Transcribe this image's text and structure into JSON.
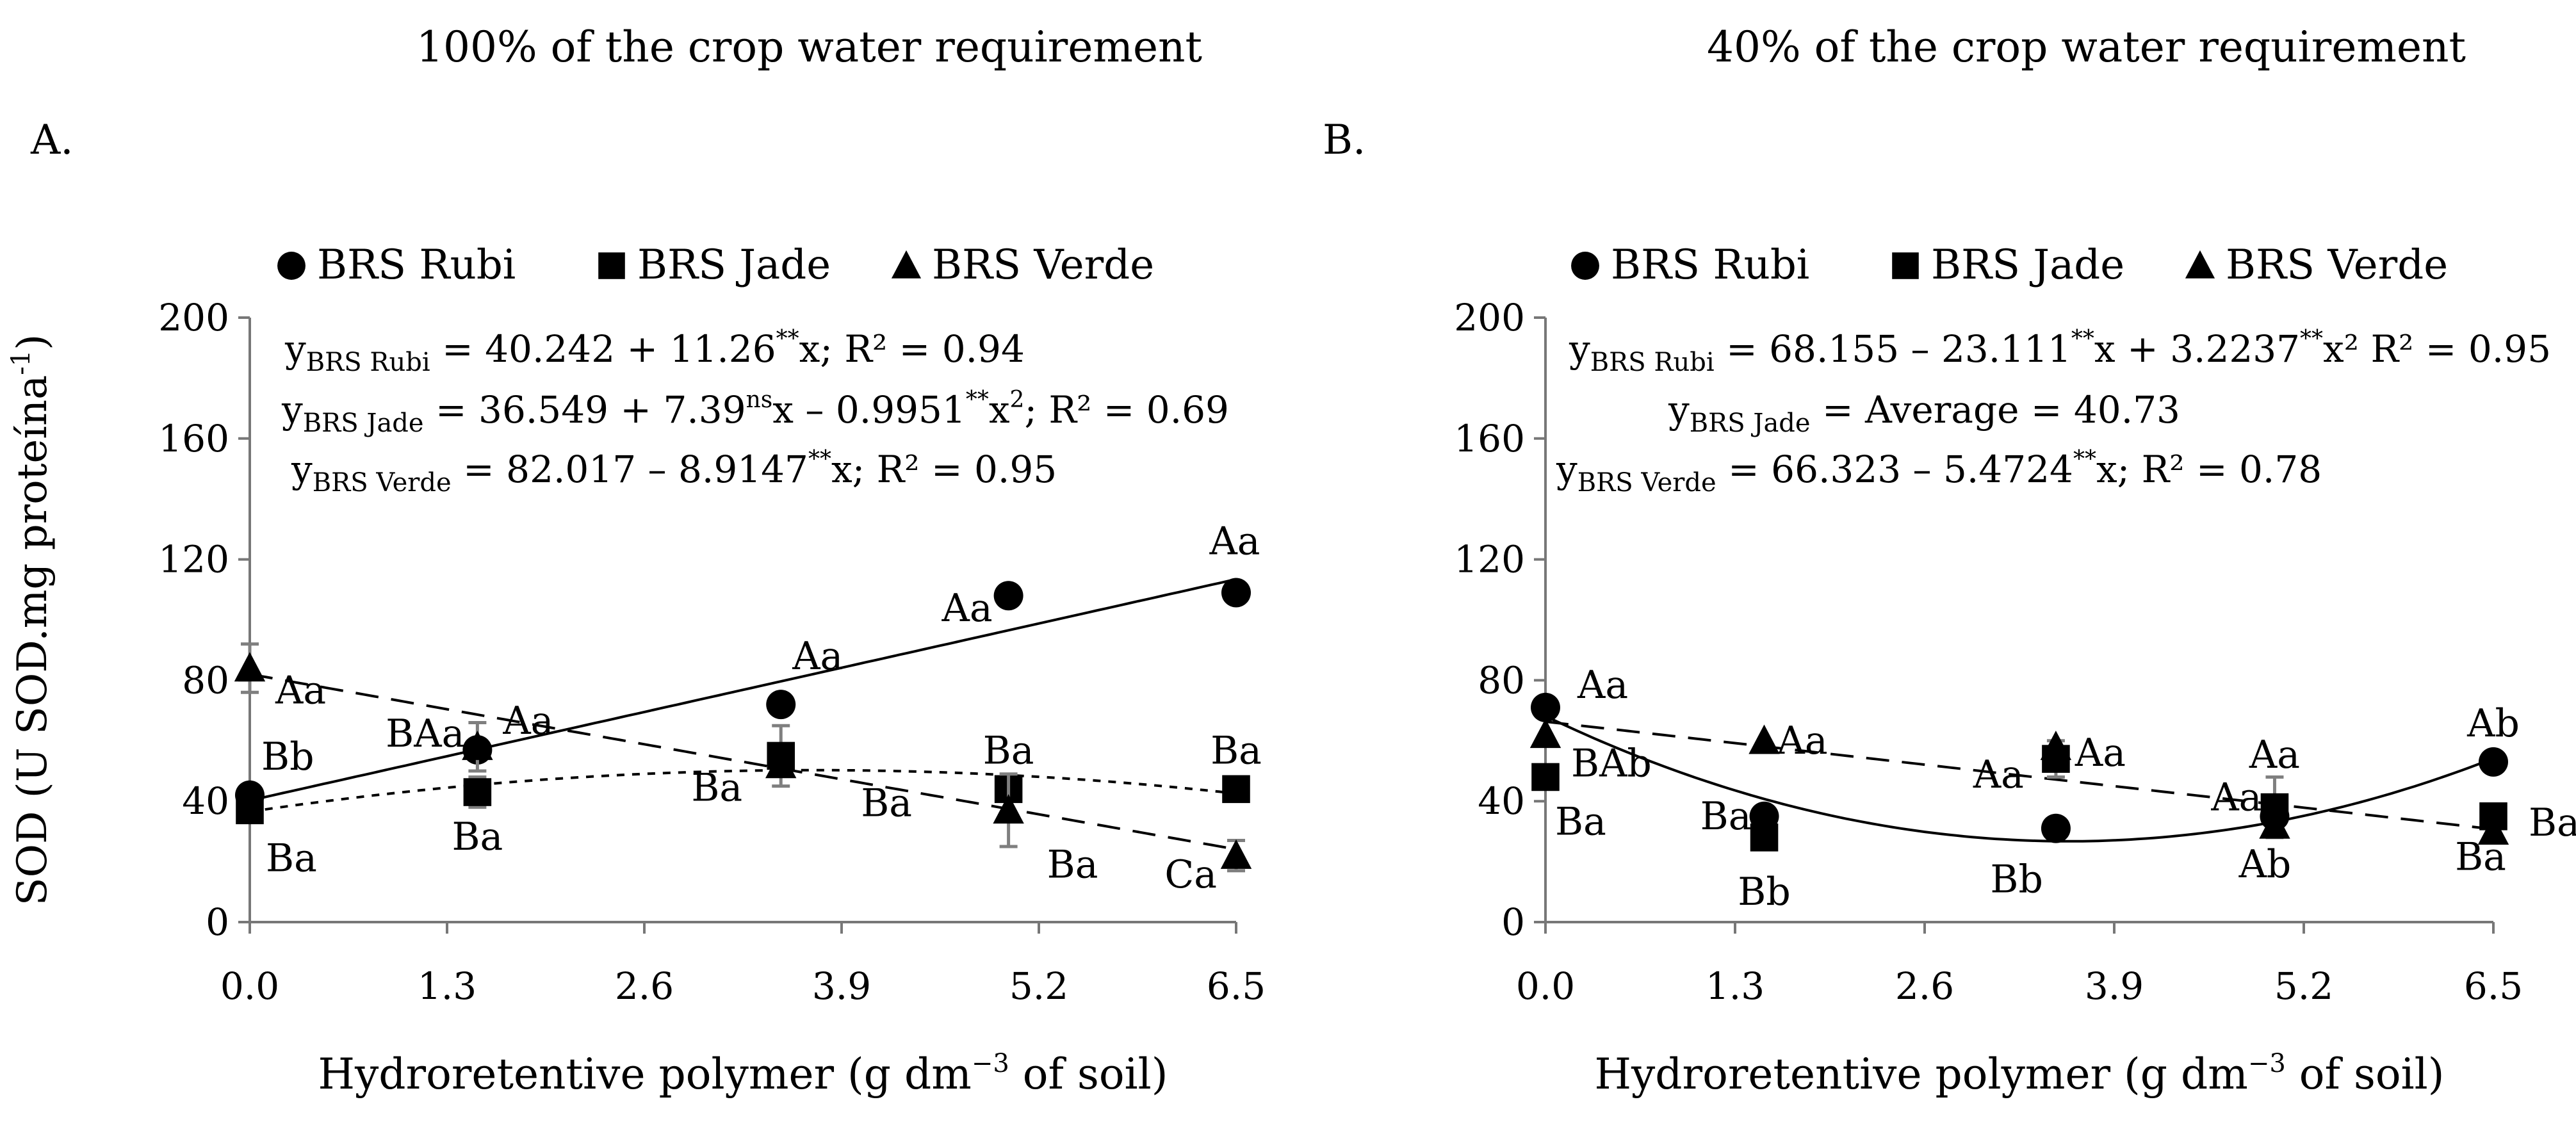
{
  "axes": {
    "x": {
      "min": 0,
      "max": 6.5,
      "ticks": [
        0,
        1.3,
        2.6,
        3.9,
        5.2,
        6.5
      ],
      "tick_labels": [
        "0.0",
        "1.3",
        "2.6",
        "3.9",
        "5.2",
        "6.5"
      ]
    },
    "y": {
      "min": 0,
      "max": 200,
      "ticks": [
        0,
        40,
        80,
        120,
        160,
        200
      ],
      "tick_labels": [
        "0",
        "40",
        "80",
        "120",
        "160",
        "200"
      ]
    }
  },
  "legend": {
    "entries": [
      {
        "name": "BRS Rubi",
        "marker": "circle"
      },
      {
        "name": "BRS Jade",
        "marker": "square"
      },
      {
        "name": "BRS Verde",
        "marker": "triangle"
      }
    ]
  },
  "chart_data": [
    {
      "type": "scatter",
      "title": "100% of the crop water requirement",
      "panel_label": "A.",
      "ylabel": "SOD (U SOD.mg proteína",
      "ylabel_sup": "-1",
      "ylabel_close": ")",
      "xlabel": "Hydroretentive polymer (g dm",
      "xlabel_sup": "−3",
      "xlabel_tail": " of soil)",
      "xlim": [
        0,
        6.5
      ],
      "ylim": [
        0,
        200
      ],
      "grid": false,
      "legend_position": "top",
      "x": [
        0,
        1.5,
        3.5,
        5.0,
        6.5
      ],
      "series": [
        {
          "name": "BRS Rubi",
          "marker": "circle",
          "values": [
            42,
            57,
            72,
            108,
            109
          ],
          "errors": [
            0,
            0,
            0,
            0,
            0
          ],
          "labels": [
            "Bb",
            "BAa",
            "Aa",
            "Aa",
            "Aa"
          ],
          "fit": "linear",
          "coef": [
            40.242,
            11.26
          ],
          "dash": "solid"
        },
        {
          "name": "BRS Jade",
          "marker": "square",
          "values": [
            37,
            43,
            55,
            44,
            44
          ],
          "errors": [
            0,
            5,
            10,
            0,
            0
          ],
          "labels": [
            "Ba",
            "Ba",
            "Ba",
            "Ba",
            "Ba"
          ],
          "fit": "quadratic",
          "coef": [
            36.549,
            7.39,
            -0.9951
          ],
          "dash": "short"
        },
        {
          "name": "BRS Verde",
          "marker": "triangle",
          "values": [
            84,
            58,
            52,
            37,
            22
          ],
          "errors": [
            8,
            8,
            0,
            12,
            5
          ],
          "labels": [
            "Aa",
            "Aa",
            "Ba",
            "Ba",
            "Ca"
          ],
          "fit": "linear",
          "coef": [
            82.017,
            -8.9147
          ],
          "dash": "long"
        }
      ],
      "equations": [
        {
          "y": "y",
          "sub": "BRS Rubi",
          "parts": [
            {
              "t": " = 40.242 + 11.26"
            },
            {
              "t": "**",
              "sup": true
            },
            {
              "t": "x; R² = 0.94"
            }
          ]
        },
        {
          "y": "y",
          "sub": "BRS Jade",
          "parts": [
            {
              "t": " = 36.549 + 7.39"
            },
            {
              "t": "ns",
              "sup": true
            },
            {
              "t": "x – 0.9951"
            },
            {
              "t": "**",
              "sup": true
            },
            {
              "t": "x"
            },
            {
              "t": "2",
              "sup": true
            },
            {
              "t": "; R² = 0.69"
            }
          ]
        },
        {
          "y": "y",
          "sub": "BRS Verde",
          "parts": [
            {
              "t": " = 82.017 – 8.9147"
            },
            {
              "t": "**",
              "sup": true
            },
            {
              "t": "x; R² = 0.95"
            }
          ]
        }
      ]
    },
    {
      "type": "scatter",
      "title": "40% of the crop water requirement",
      "panel_label": "B.",
      "ylabel": "",
      "xlabel": "Hydroretentive polymer (g dm",
      "xlabel_sup": "−3",
      "xlabel_tail": " of soil)",
      "xlim": [
        0,
        6.5
      ],
      "ylim": [
        0,
        200
      ],
      "grid": false,
      "legend_position": "top",
      "x": [
        0,
        1.5,
        3.5,
        5.0,
        6.5
      ],
      "series": [
        {
          "name": "BRS Rubi",
          "marker": "circle",
          "values": [
            71,
            35,
            31,
            35,
            53
          ],
          "errors": [
            0,
            0,
            0,
            0,
            0
          ],
          "labels": [
            "Aa",
            "Ba",
            "Bb",
            "Ab",
            "Ab"
          ],
          "fit": "quadratic",
          "coef": [
            68.155,
            -23.111,
            3.2237
          ],
          "dash": "solid"
        },
        {
          "name": "BRS Jade",
          "marker": "square",
          "values": [
            48,
            28,
            54,
            38,
            35
          ],
          "errors": [
            0,
            0,
            6,
            10,
            0
          ],
          "labels": [
            "Ba",
            "Bb",
            "Aa",
            "Aa",
            "Ba"
          ],
          "fit": "none",
          "dash": "none"
        },
        {
          "name": "BRS Verde",
          "marker": "triangle",
          "values": [
            62,
            60,
            58,
            32,
            30
          ],
          "errors": [
            0,
            0,
            0,
            0,
            0
          ],
          "labels": [
            "BAb",
            "Aa",
            "Aa",
            "Aa",
            "Ba"
          ],
          "fit": "linear",
          "coef": [
            66.323,
            -5.4724
          ],
          "dash": "long"
        }
      ],
      "equations": [
        {
          "y": "y",
          "sub": "BRS Rubi",
          "parts": [
            {
              "t": " = 68.155 – 23.111"
            },
            {
              "t": "**",
              "sup": true
            },
            {
              "t": "x + 3.2237"
            },
            {
              "t": "**",
              "sup": true
            },
            {
              "t": "x²"
            },
            {
              "t": " R² = 0.95"
            }
          ]
        },
        {
          "y": "y",
          "sub": "BRS Jade",
          "parts": [
            {
              "t": " = Average = 40.73"
            }
          ]
        },
        {
          "y": "y",
          "sub": "BRS Verde",
          "parts": [
            {
              "t": " = 66.323 – 5.4724"
            },
            {
              "t": "**",
              "sup": true
            },
            {
              "t": "x; R² = 0.78"
            }
          ]
        }
      ]
    }
  ]
}
